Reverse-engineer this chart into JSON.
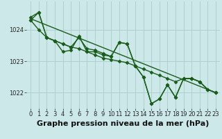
{
  "title": "Graphe pression niveau de la mer (hPa)",
  "background_color": "#cce8e8",
  "grid_color": "#aacccc",
  "line_color": "#1a5c1a",
  "ylim": [
    1021.5,
    1024.9
  ],
  "yticks": [
    1022,
    1023,
    1024
  ],
  "xlim": [
    -0.5,
    23.5
  ],
  "xticks": [
    0,
    1,
    2,
    3,
    4,
    5,
    6,
    7,
    8,
    9,
    10,
    11,
    12,
    13,
    14,
    15,
    16,
    17,
    18,
    19,
    20,
    21,
    22,
    23
  ],
  "series": [
    {
      "x": [
        0,
        23
      ],
      "y": [
        1024.35,
        1022.0
      ],
      "marker": "None",
      "markersize": 0,
      "linewidth": 1.0
    },
    {
      "x": [
        0,
        1,
        2,
        3,
        4,
        5,
        6,
        7,
        8,
        9,
        10,
        11,
        12,
        13,
        14,
        15,
        16,
        17,
        18,
        19,
        20,
        21,
        22,
        23
      ],
      "y": [
        1024.3,
        1024.55,
        1023.75,
        1023.65,
        1023.3,
        1023.35,
        1023.8,
        1023.3,
        1023.3,
        1023.2,
        1023.15,
        1023.6,
        1023.55,
        1022.85,
        1022.5,
        1021.65,
        1021.8,
        1022.25,
        1021.85,
        1022.45,
        1022.45,
        1022.35,
        1022.1,
        1022.0
      ],
      "marker": "D",
      "markersize": 2.5,
      "linewidth": 1.0
    },
    {
      "x": [
        0,
        1,
        2,
        3,
        4,
        5,
        6,
        7,
        8,
        9,
        10,
        11,
        12,
        13,
        14,
        15,
        16,
        17,
        18,
        19,
        20,
        21,
        22,
        23
      ],
      "y": [
        1024.3,
        1024.0,
        1023.75,
        1023.65,
        1023.55,
        1023.45,
        1023.4,
        1023.3,
        1023.2,
        1023.1,
        1023.05,
        1023.0,
        1022.95,
        1022.85,
        1022.75,
        1022.65,
        1022.55,
        1022.45,
        1022.35,
        1022.45,
        1022.45,
        1022.35,
        1022.1,
        1022.0
      ],
      "marker": "D",
      "markersize": 2.5,
      "linewidth": 1.0
    },
    {
      "x": [
        0,
        1,
        2,
        3,
        4,
        5,
        6,
        7,
        8,
        9,
        10,
        11,
        12,
        13,
        14,
        15,
        16,
        17,
        18,
        19,
        20,
        21,
        22,
        23
      ],
      "y": [
        1024.4,
        1024.55,
        1023.75,
        1023.65,
        1023.55,
        1023.45,
        1023.75,
        1023.4,
        1023.35,
        1023.25,
        1023.15,
        1023.6,
        1023.55,
        1022.85,
        1022.5,
        1021.65,
        1021.8,
        1022.25,
        1021.85,
        1022.45,
        1022.45,
        1022.35,
        1022.1,
        1022.0
      ],
      "marker": "D",
      "markersize": 2.5,
      "linewidth": 1.0
    }
  ],
  "title_fontsize": 8,
  "tick_fontsize": 6,
  "ylabel_fontsize": 7
}
